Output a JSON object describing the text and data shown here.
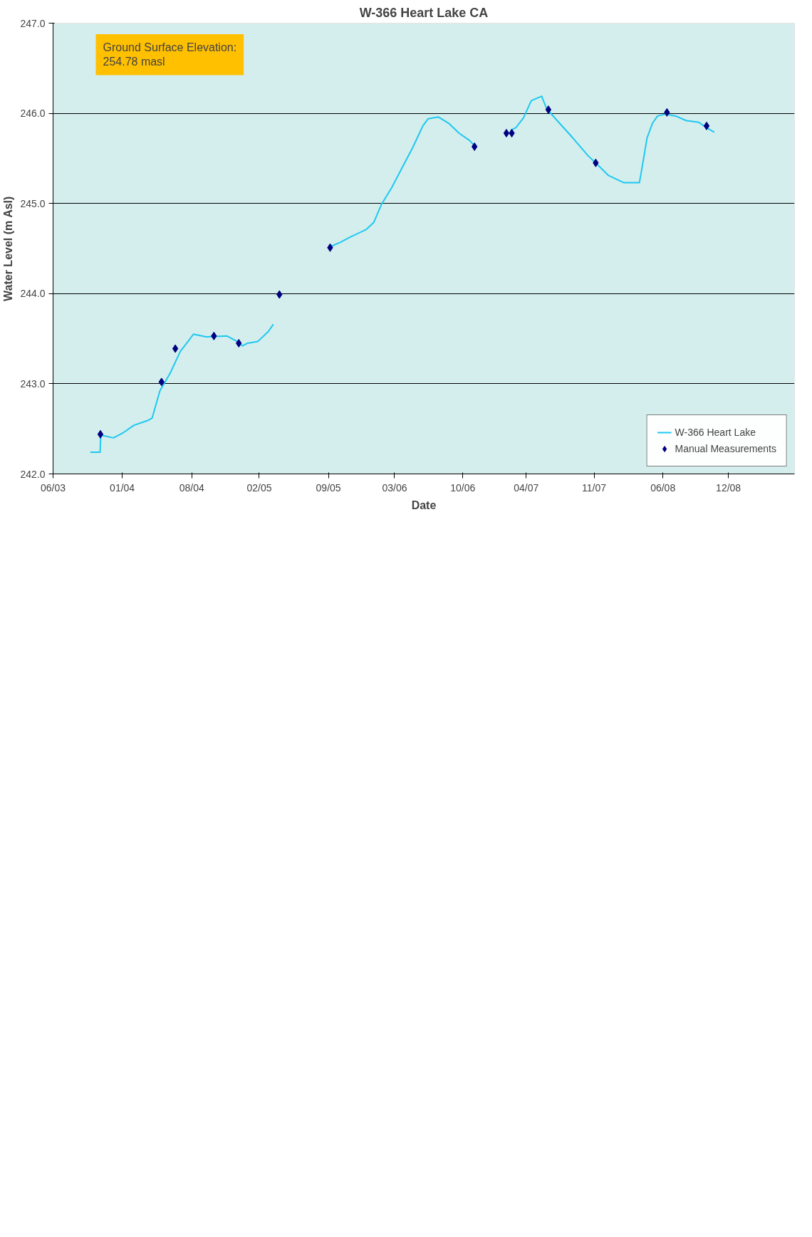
{
  "chart_data": {
    "type": "line",
    "title": "W-366 Heart Lake CA",
    "xlabel": "Date",
    "ylabel": "Water Level (m Asl)",
    "annotations": [
      "Ground Surface Elevation:\n254.78 masl"
    ],
    "xlim": [
      "2003-06-15",
      "2009-07-01"
    ],
    "xticks": [
      {
        "value": "2003-06-15",
        "label": "06/03"
      },
      {
        "value": "2004-01-07",
        "label": "01/04"
      },
      {
        "value": "2004-08-01",
        "label": "08/04"
      },
      {
        "value": "2005-02-18",
        "label": "02/05"
      },
      {
        "value": "2005-09-12",
        "label": "09/05"
      },
      {
        "value": "2006-03-28",
        "label": "03/06"
      },
      {
        "value": "2006-10-17",
        "label": "10/06"
      },
      {
        "value": "2007-04-24",
        "label": "04/07"
      },
      {
        "value": "2007-11-12",
        "label": "11/07"
      },
      {
        "value": "2008-06-04",
        "label": "06/08"
      },
      {
        "value": "2008-12-16",
        "label": "12/08"
      }
    ],
    "ylim": [
      242,
      247
    ],
    "yticks": [
      {
        "value": 242,
        "label": "242.0"
      },
      {
        "value": 243,
        "label": "243.0"
      },
      {
        "value": 244,
        "label": "244.0"
      },
      {
        "value": 245,
        "label": "245.0"
      },
      {
        "value": 246,
        "label": "246.0"
      },
      {
        "value": 247,
        "label": "247.0"
      }
    ],
    "grid": "y",
    "legend": "bottom right",
    "series": [
      {
        "name": "W-366 Heart Lake",
        "color": "#1ec8f0",
        "line_style": "solid",
        "marker": "none",
        "x": [
          "2003-10-04",
          "2003-11-02",
          "2003-11-04",
          "2003-12-12",
          "2004-01-11",
          "2004-02-11",
          "2004-03-21",
          "2004-04-05",
          "2004-04-28",
          "2004-05-29",
          "2004-06-28",
          "2004-07-21",
          "2004-08-06",
          "2004-09-13",
          "2004-11-14",
          "2004-12-14",
          "2004-12-30",
          "2005-01-14",
          "2005-02-14",
          "2005-03-17",
          "2005-04-01",
          "2005-06-01",
          "2005-09-17",
          "2005-10-18",
          "2005-11-17",
          "2006-01-02",
          "2006-01-25",
          "2006-02-17",
          "2006-03-20",
          "2006-04-20",
          "2006-05-21",
          "2006-06-20",
          "2006-07-06",
          "2006-08-05",
          "2006-09-05",
          "2006-10-06",
          "2006-11-06",
          "2006-11-21",
          "2007-01-01",
          "2007-03-08",
          "2007-03-24",
          "2007-04-16",
          "2007-05-09",
          "2007-06-09",
          "2007-06-24",
          "2007-07-25",
          "2007-09-09",
          "2007-10-25",
          "2007-11-25",
          "2007-12-25",
          "2008-02-09",
          "2008-03-26",
          "2008-04-03",
          "2008-04-18",
          "2008-05-04",
          "2008-05-19",
          "2008-06-11",
          "2008-07-12",
          "2008-08-12",
          "2008-09-19",
          "2008-10-12",
          "2008-11-04"
        ],
        "values": [
          242.24,
          242.24,
          242.43,
          242.4,
          242.46,
          242.54,
          242.59,
          242.62,
          242.92,
          243.12,
          243.36,
          243.47,
          243.55,
          243.52,
          243.53,
          243.47,
          243.42,
          243.45,
          243.47,
          243.58,
          243.66,
          null,
          244.52,
          244.57,
          244.63,
          244.71,
          244.79,
          244.99,
          245.18,
          245.4,
          245.62,
          245.86,
          245.94,
          245.96,
          245.89,
          245.78,
          245.7,
          245.64,
          null,
          245.81,
          245.84,
          245.95,
          246.14,
          246.19,
          246.05,
          245.92,
          245.73,
          245.53,
          245.42,
          245.31,
          245.23,
          245.23,
          245.4,
          245.73,
          245.89,
          245.97,
          245.99,
          245.97,
          245.92,
          245.9,
          245.84,
          245.79
        ]
      },
      {
        "name": "Manual Measurements",
        "type": "scatter",
        "color": "#000080",
        "marker": "diamond",
        "x": [
          "2003-11-03",
          "2004-05-03",
          "2004-06-13",
          "2004-10-06",
          "2004-12-19",
          "2005-04-19",
          "2005-09-17",
          "2006-11-21",
          "2007-02-24",
          "2007-03-12",
          "2007-06-29",
          "2007-11-17",
          "2008-06-16",
          "2008-10-12"
        ],
        "values": [
          242.44,
          243.02,
          243.39,
          243.53,
          243.45,
          243.99,
          244.51,
          245.63,
          245.78,
          245.78,
          246.04,
          245.45,
          246.01,
          245.86
        ]
      }
    ]
  }
}
